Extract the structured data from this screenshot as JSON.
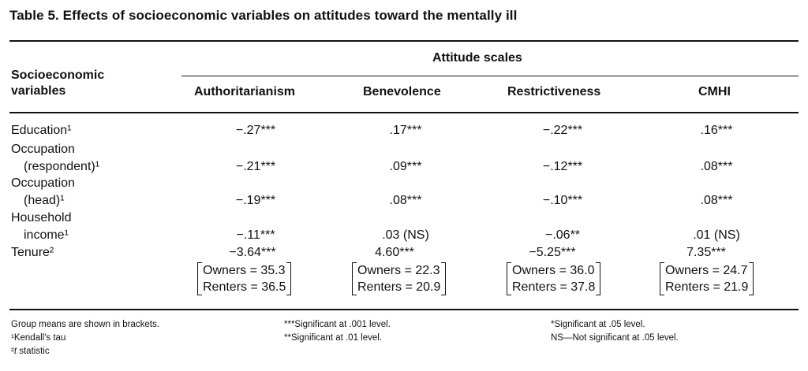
{
  "title": "Table 5. Effects of socioeconomic variables on attitudes toward the mentally ill",
  "header": {
    "stub_line1": "Socioeconomic",
    "stub_line2": "variables",
    "spanner": "Attitude scales",
    "columns": [
      "Authoritarianism",
      "Benevolence",
      "Restrictiveness",
      "CMHI"
    ]
  },
  "rows": [
    {
      "label_lines": [
        "Education¹"
      ],
      "values": [
        "−.27***",
        ".17***",
        "−.22***",
        ".16***"
      ]
    },
    {
      "label_lines": [
        "Occupation",
        "(respondent)¹"
      ],
      "values": [
        "−.21***",
        ".09***",
        "−.12***",
        ".08***"
      ]
    },
    {
      "label_lines": [
        "Occupation",
        "(head)¹"
      ],
      "values": [
        "−.19***",
        ".08***",
        "−.10***",
        ".08***"
      ]
    },
    {
      "label_lines": [
        "Household",
        "income¹"
      ],
      "values": [
        "−.11***",
        ".03 (NS)",
        "−.06**",
        ".01 (NS)"
      ]
    },
    {
      "label_lines": [
        "Tenure²"
      ],
      "values": [
        "−3.64***",
        "4.60***",
        "−5.25***",
        "7.35***"
      ]
    }
  ],
  "group_means": [
    {
      "owners": "Owners = 35.3",
      "renters": "Renters = 36.5"
    },
    {
      "owners": "Owners = 22.3",
      "renters": "Renters = 20.9"
    },
    {
      "owners": "Owners = 36.0",
      "renters": "Renters = 37.8"
    },
    {
      "owners": "Owners = 24.7",
      "renters": "Renters = 21.9"
    }
  ],
  "notes": {
    "group_means": "Group means are shown in brackets.",
    "kendall_mark": "¹",
    "kendall": "Kendall's tau",
    "t_mark": "²",
    "t_var": "t",
    "t_rest": " statistic",
    "sig001": "***Significant at .001 level.",
    "sig01": "**Significant at .01 level.",
    "sig05": "*Significant at .05 level.",
    "ns": "NS—Not significant at .05 level."
  }
}
